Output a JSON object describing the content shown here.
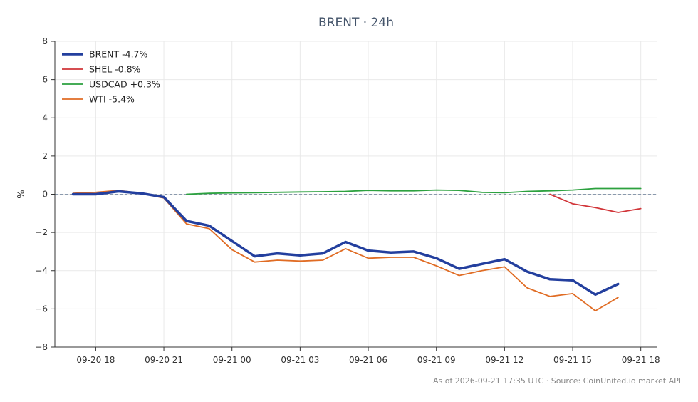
{
  "chart_data": {
    "type": "line",
    "title": "BRENT · 24h",
    "ylabel": "%",
    "xlabel": "",
    "ylim": [
      -8,
      8
    ],
    "xlim": [
      -1.8,
      24.7
    ],
    "yticks": [
      -8,
      -6,
      -4,
      -2,
      0,
      2,
      4,
      6,
      8
    ],
    "yticklabels": [
      "−8",
      "−6",
      "−4",
      "−2",
      "0",
      "2",
      "4",
      "6",
      "8"
    ],
    "xticks": [
      {
        "x": 0,
        "label": "09-20 18"
      },
      {
        "x": 3,
        "label": "09-20 21"
      },
      {
        "x": 6,
        "label": "09-21 00"
      },
      {
        "x": 9,
        "label": "09-21 03"
      },
      {
        "x": 12,
        "label": "09-21 06"
      },
      {
        "x": 15,
        "label": "09-21 09"
      },
      {
        "x": 18,
        "label": "09-21 12"
      },
      {
        "x": 21,
        "label": "09-21 15"
      },
      {
        "x": 24,
        "label": "09-21 18"
      }
    ],
    "grid": true,
    "zero_line": true,
    "legend_position": "top-left",
    "series": [
      {
        "name": "BRENT -4.7%",
        "color": "#233f9e",
        "width": 3.5,
        "x": [
          -1,
          0,
          1,
          2,
          3,
          4,
          5,
          6,
          7,
          8,
          9,
          10,
          11,
          12,
          13,
          14,
          15,
          16,
          17,
          18,
          19,
          20,
          21,
          22,
          23
        ],
        "y": [
          0.0,
          0.0,
          0.15,
          0.05,
          -0.15,
          -1.4,
          -1.65,
          -2.45,
          -3.25,
          -3.1,
          -3.2,
          -3.1,
          -2.5,
          -2.95,
          -3.05,
          -3.0,
          -3.35,
          -3.9,
          -3.65,
          -3.4,
          -4.05,
          -4.45,
          -4.5,
          -5.25,
          -4.7
        ]
      },
      {
        "name": "SHEL -0.8%",
        "color": "#d13438",
        "width": 1.8,
        "x": [
          20,
          21,
          22,
          23,
          24
        ],
        "y": [
          0.0,
          -0.5,
          -0.7,
          -0.95,
          -0.75
        ]
      },
      {
        "name": "USDCAD +0.3%",
        "color": "#2ca13f",
        "width": 1.8,
        "x": [
          4,
          5,
          6,
          7,
          8,
          9,
          10,
          11,
          12,
          13,
          14,
          15,
          16,
          17,
          18,
          19,
          20,
          21,
          22,
          23,
          24
        ],
        "y": [
          0.0,
          0.05,
          0.07,
          0.08,
          0.1,
          0.12,
          0.13,
          0.15,
          0.2,
          0.18,
          0.18,
          0.22,
          0.2,
          0.1,
          0.08,
          0.15,
          0.18,
          0.22,
          0.3,
          0.3,
          0.3
        ]
      },
      {
        "name": "WTI -5.4%",
        "color": "#e06c24",
        "width": 1.8,
        "x": [
          -1,
          0,
          1,
          2,
          3,
          4,
          5,
          6,
          7,
          8,
          9,
          10,
          11,
          12,
          13,
          14,
          15,
          16,
          17,
          18,
          19,
          20,
          21,
          22,
          23
        ],
        "y": [
          0.05,
          0.1,
          0.2,
          0.05,
          -0.2,
          -1.55,
          -1.8,
          -2.9,
          -3.55,
          -3.45,
          -3.5,
          -3.45,
          -2.85,
          -3.35,
          -3.3,
          -3.3,
          -3.75,
          -4.25,
          -4.0,
          -3.8,
          -4.9,
          -5.35,
          -5.2,
          -6.1,
          -5.4
        ]
      }
    ],
    "source_text": "As of 2026-09-21 17:35 UTC · Source: CoinUnited.io market API"
  }
}
